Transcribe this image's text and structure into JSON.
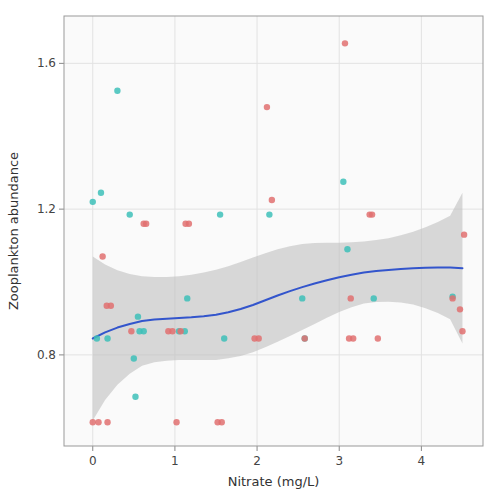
{
  "chart_data": {
    "type": "scatter",
    "xlabel": "Nitrate (mg/L)",
    "ylabel": "Zooplankton abundance",
    "xlim": [
      -0.35,
      4.75
    ],
    "ylim": [
      0.55,
      1.73
    ],
    "xticks": [
      0,
      1,
      2,
      3,
      4
    ],
    "yticks": [
      0.8,
      1.2,
      1.6
    ],
    "grid": true,
    "series": [
      {
        "type": "area",
        "color": "#C0C0C0",
        "x": [
          0.0,
          0.15,
          0.3,
          0.45,
          0.6,
          0.75,
          0.9,
          1.05,
          1.2,
          1.35,
          1.5,
          1.65,
          1.8,
          1.95,
          2.1,
          2.25,
          2.4,
          2.55,
          2.7,
          2.85,
          3.0,
          3.15,
          3.3,
          3.45,
          3.6,
          3.75,
          3.9,
          4.05,
          4.2,
          4.35,
          4.5
        ],
        "lower": [
          0.62,
          0.676,
          0.718,
          0.748,
          0.77,
          0.78,
          0.784,
          0.786,
          0.786,
          0.786,
          0.786,
          0.791,
          0.797,
          0.807,
          0.821,
          0.836,
          0.852,
          0.868,
          0.885,
          0.902,
          0.918,
          0.931,
          0.941,
          0.945,
          0.946,
          0.944,
          0.938,
          0.928,
          0.915,
          0.898,
          0.831
        ],
        "upper": [
          1.07,
          1.048,
          1.032,
          1.022,
          1.016,
          1.014,
          1.014,
          1.016,
          1.02,
          1.026,
          1.034,
          1.043,
          1.055,
          1.067,
          1.079,
          1.09,
          1.098,
          1.104,
          1.107,
          1.108,
          1.108,
          1.109,
          1.111,
          1.115,
          1.12,
          1.128,
          1.138,
          1.15,
          1.165,
          1.182,
          1.245
        ]
      },
      {
        "type": "line",
        "color": "#3355CC",
        "x": [
          0.0,
          0.15,
          0.3,
          0.45,
          0.6,
          0.75,
          0.9,
          1.05,
          1.2,
          1.35,
          1.5,
          1.65,
          1.8,
          1.95,
          2.1,
          2.25,
          2.4,
          2.55,
          2.7,
          2.85,
          3.0,
          3.15,
          3.3,
          3.45,
          3.6,
          3.75,
          3.9,
          4.05,
          4.2,
          4.35,
          4.5
        ],
        "values": [
          0.845,
          0.862,
          0.875,
          0.885,
          0.893,
          0.897,
          0.899,
          0.901,
          0.903,
          0.906,
          0.91,
          0.917,
          0.926,
          0.937,
          0.95,
          0.963,
          0.975,
          0.986,
          0.996,
          1.005,
          1.013,
          1.02,
          1.026,
          1.03,
          1.033,
          1.036,
          1.038,
          1.039,
          1.04,
          1.04,
          1.038
        ]
      },
      {
        "type": "scatter",
        "color": "#3DBFB8",
        "marker": "circle",
        "x": [
          0.0,
          0.05,
          0.1,
          0.18,
          0.3,
          0.45,
          0.5,
          0.52,
          0.55,
          0.57,
          0.62,
          1.05,
          1.12,
          1.15,
          1.55,
          1.6,
          2.15,
          2.55,
          2.58,
          3.05,
          3.1,
          3.42,
          4.38
        ],
        "values": [
          1.22,
          0.845,
          1.245,
          0.845,
          1.525,
          1.185,
          0.79,
          0.685,
          0.905,
          0.865,
          0.865,
          0.865,
          0.865,
          0.955,
          1.185,
          0.845,
          1.185,
          0.955,
          0.845,
          1.275,
          1.09,
          0.955,
          0.96
        ]
      },
      {
        "type": "scatter",
        "color": "#E07070",
        "marker": "circle",
        "x": [
          0.0,
          0.07,
          0.18,
          0.12,
          0.17,
          0.22,
          0.47,
          0.62,
          0.65,
          0.92,
          0.97,
          1.02,
          1.07,
          1.13,
          1.17,
          1.52,
          1.57,
          1.97,
          2.02,
          2.12,
          2.18,
          2.58,
          3.07,
          3.12,
          3.14,
          3.17,
          3.37,
          3.4,
          3.47,
          4.38,
          4.47,
          4.5,
          4.52
        ],
        "values": [
          0.615,
          0.615,
          0.615,
          1.07,
          0.935,
          0.935,
          0.865,
          1.16,
          1.16,
          0.865,
          0.865,
          0.615,
          0.865,
          1.16,
          1.16,
          0.615,
          0.615,
          0.845,
          0.845,
          1.48,
          1.225,
          0.845,
          1.655,
          0.845,
          0.955,
          0.845,
          1.185,
          1.185,
          0.845,
          0.955,
          0.925,
          0.865,
          1.13
        ]
      }
    ]
  }
}
